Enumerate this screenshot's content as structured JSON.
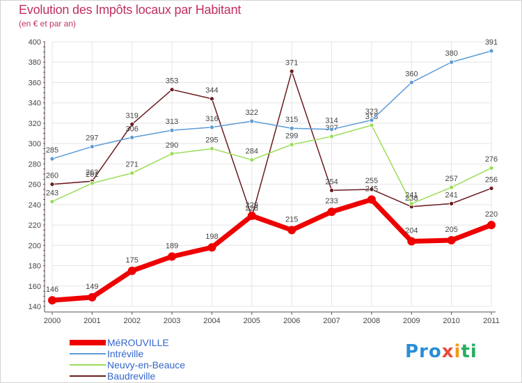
{
  "header": {
    "title": "Evolution des Impôts locaux par Habitant",
    "subtitle": "(en € et par an)"
  },
  "logo": {
    "text": "Proxiti"
  },
  "chart_data": {
    "type": "line",
    "title": "Evolution des Impôts locaux par Habitant",
    "subtitle": "(en € et par an)",
    "xlabel": "",
    "ylabel": "",
    "categories": [
      "2000",
      "2001",
      "2002",
      "2003",
      "2004",
      "2005",
      "2006",
      "2007",
      "2008",
      "2009",
      "2010",
      "2011"
    ],
    "ylim": [
      140,
      400
    ],
    "yticks": [
      140,
      160,
      180,
      200,
      220,
      240,
      260,
      280,
      300,
      320,
      340,
      360,
      380,
      400
    ],
    "grid": true,
    "legend_position": "bottom-left",
    "series": [
      {
        "name": "Baudreville",
        "color": "#6b1a1f",
        "values": [
          260,
          263,
          319,
          353,
          344,
          228,
          371,
          254,
          255,
          238,
          241,
          256
        ],
        "labels": [
          "260",
          "263",
          "319",
          "353",
          "344",
          "228",
          "371",
          "254",
          "255",
          "238",
          "241",
          "256"
        ]
      },
      {
        "name": "Neuvy-en-Beauce",
        "color": "#99dd55",
        "values": [
          243,
          261,
          271,
          290,
          295,
          284,
          299,
          307,
          318,
          241,
          257,
          276
        ],
        "labels": [
          "243",
          "261",
          "271",
          "290",
          "295",
          "284",
          "299",
          "307",
          "318",
          "241",
          "257",
          "276"
        ]
      },
      {
        "name": "Intréville",
        "color": "#5b9bd5",
        "values": [
          285,
          297,
          306,
          313,
          316,
          322,
          315,
          314,
          323,
          360,
          380,
          391
        ],
        "labels": [
          "285",
          "297",
          "306",
          "313",
          "316",
          "322",
          "315",
          "314",
          "323",
          "360",
          "380",
          "391"
        ]
      },
      {
        "name": "MéROUVILLE",
        "color": "#ee0000",
        "values": [
          146,
          149,
          175,
          189,
          198,
          229,
          215,
          233,
          245,
          204,
          205,
          220
        ],
        "labels": [
          "146",
          "149",
          "175",
          "189",
          "198",
          "229",
          "215",
          "233",
          "245",
          "204",
          "205",
          "220"
        ]
      }
    ],
    "legend": [
      "MéROUVILLE",
      "Intréville",
      "Neuvy-en-Beauce",
      "Baudreville"
    ]
  },
  "colors": {
    "title": "#c0305e",
    "legend_text": "#3366cc",
    "axis": "#555555",
    "grid": "#e4e4e4"
  }
}
